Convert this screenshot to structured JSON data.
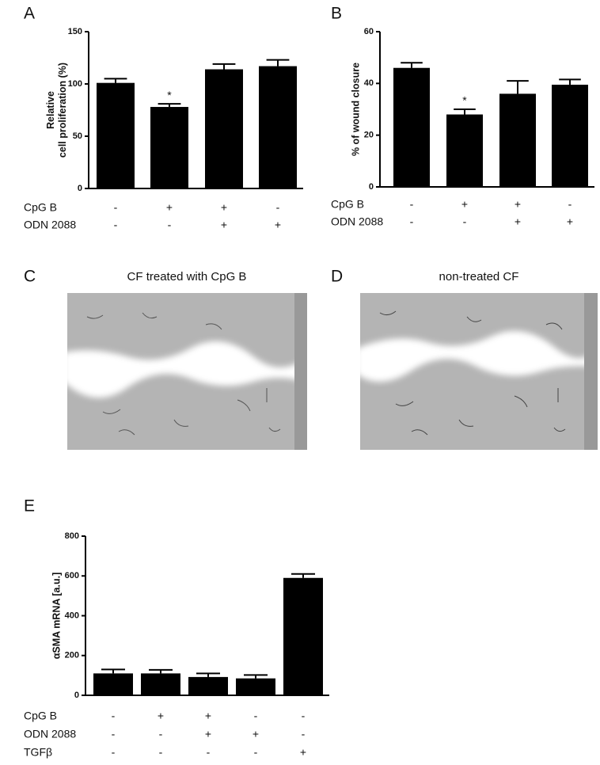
{
  "chart_data": [
    {
      "type": "bar",
      "panel": "A",
      "ylabel": [
        "Relative",
        "cell proliferation (%)"
      ],
      "values": [
        101,
        78,
        114,
        117
      ],
      "errors": [
        4,
        3,
        5,
        6
      ],
      "significance": [
        null,
        "*",
        null,
        null
      ],
      "color": "#000000",
      "ylim": [
        0,
        150
      ],
      "yticks": [
        0,
        50,
        100,
        150
      ],
      "conditions": [
        {
          "name": "CpG B",
          "signs": [
            "-",
            "+",
            "+",
            "-"
          ]
        },
        {
          "name": "ODN 2088",
          "signs": [
            "-",
            "-",
            "+",
            "+"
          ]
        }
      ]
    },
    {
      "type": "bar",
      "panel": "B",
      "ylabel": [
        "% of wound closure"
      ],
      "values": [
        46,
        28,
        36,
        39.5
      ],
      "errors": [
        2,
        2,
        5,
        2
      ],
      "significance": [
        null,
        "*",
        null,
        null
      ],
      "color": "#000000",
      "ylim": [
        0,
        60
      ],
      "yticks": [
        0,
        20,
        40,
        60
      ],
      "conditions": [
        {
          "name": "CpG  B",
          "signs": [
            "-",
            "+",
            "+",
            "-"
          ]
        },
        {
          "name": "ODN 2088",
          "signs": [
            "-",
            "-",
            "+",
            "+"
          ]
        }
      ]
    },
    {
      "type": "bar",
      "panel": "E",
      "ylabel": [
        "αSMA mRNA [a.u.]"
      ],
      "values": [
        110,
        110,
        92,
        85,
        590
      ],
      "errors": [
        20,
        18,
        18,
        17,
        20
      ],
      "significance": [
        null,
        null,
        null,
        null,
        null
      ],
      "color": "#000000",
      "ylim": [
        0,
        800
      ],
      "yticks": [
        0,
        200,
        400,
        600,
        800
      ],
      "conditions": [
        {
          "name": "CpG B",
          "signs": [
            "-",
            "+",
            "+",
            "-",
            "-"
          ]
        },
        {
          "name": "ODN 2088",
          "signs": [
            "-",
            "-",
            "+",
            "+",
            "-"
          ]
        },
        {
          "name": "TGFβ",
          "signs": [
            "-",
            "-",
            "-",
            "-",
            "+"
          ]
        }
      ]
    }
  ],
  "images": [
    {
      "panel": "C",
      "caption": "CF treated with CpG B"
    },
    {
      "panel": "D",
      "caption": "non-treated CF"
    }
  ]
}
